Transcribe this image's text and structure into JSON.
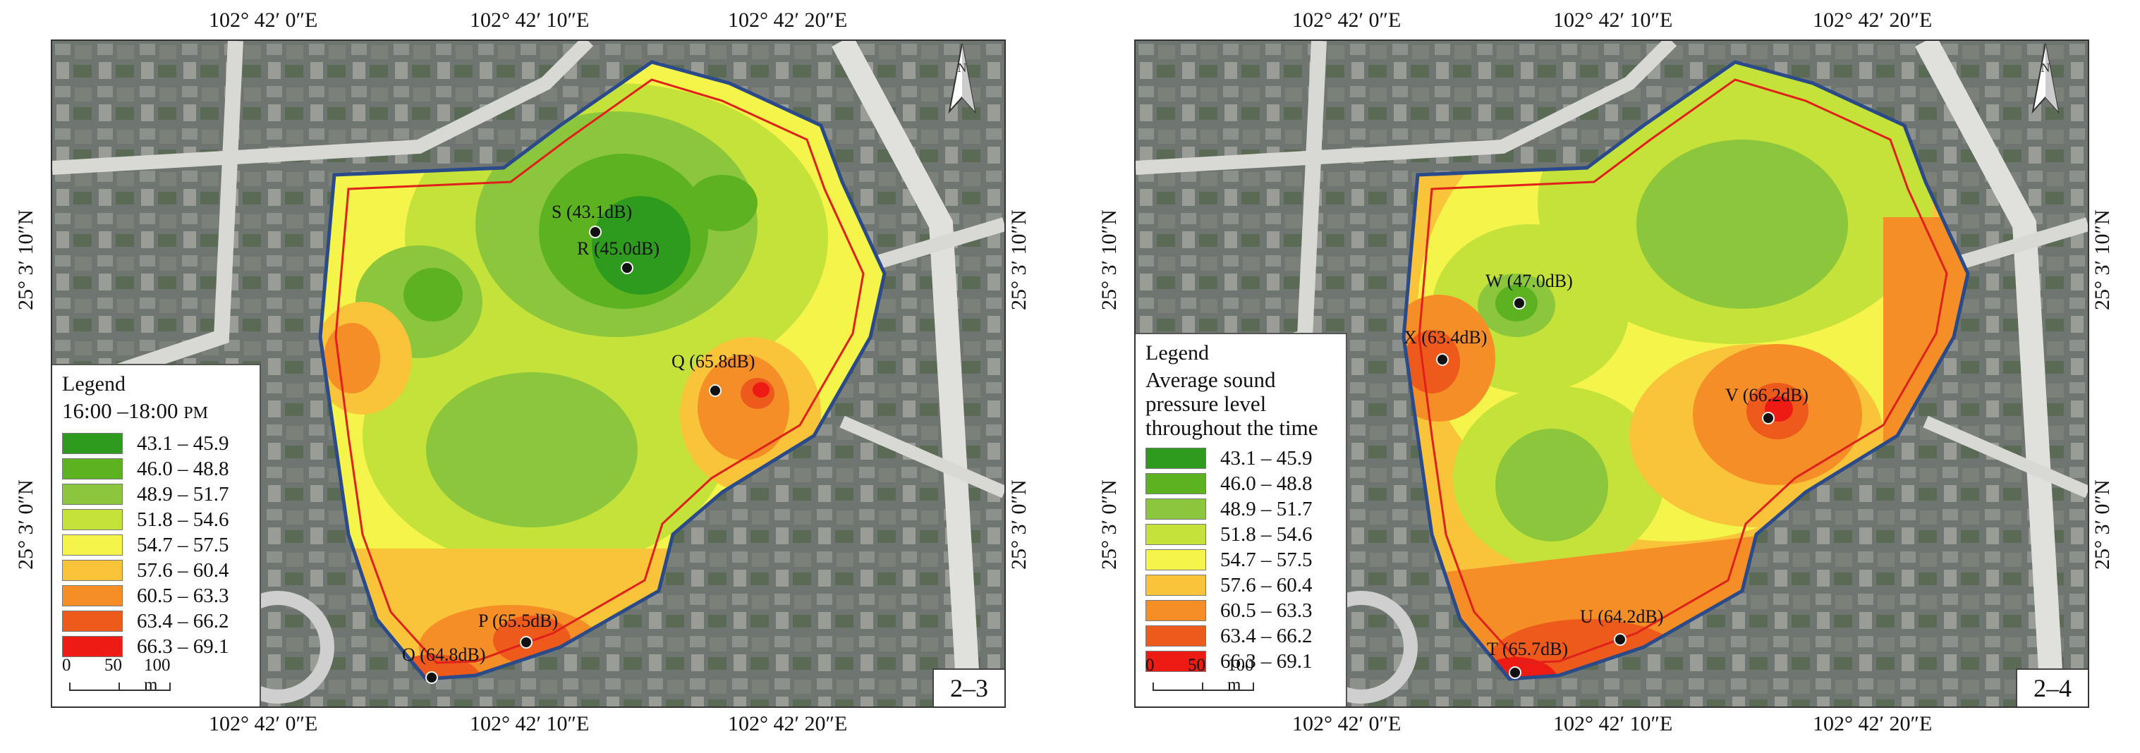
{
  "coordinates": {
    "top": [
      "102° 42′ 0″E",
      "102° 42′ 10″E",
      "102° 42′ 20″E"
    ],
    "bottom": [
      "102° 42′ 0″E",
      "102° 42′ 10″E",
      "102° 42′ 20″E"
    ],
    "left": [
      "25° 3′ 10″N",
      "25° 3′ 0″N"
    ],
    "right": [
      "25° 3′ 10″N",
      "25° 3′ 0″N"
    ]
  },
  "legend_classes": [
    {
      "label": "43.1 – 45.9",
      "color": "#2e9a1e"
    },
    {
      "label": "46.0 – 48.8",
      "color": "#5cb21f"
    },
    {
      "label": "48.9 – 51.7",
      "color": "#8cc63c"
    },
    {
      "label": "51.8 – 54.6",
      "color": "#c4e23a"
    },
    {
      "label": "54.7 – 57.5",
      "color": "#f4f44a"
    },
    {
      "label": "57.6 – 60.4",
      "color": "#f9c43a"
    },
    {
      "label": "60.5 – 63.3",
      "color": "#f58e26"
    },
    {
      "label": "63.4 – 66.2",
      "color": "#ee5a1c"
    },
    {
      "label": "66.3 – 69.1",
      "color": "#ee1a14"
    }
  ],
  "scale_bar": {
    "zero": "0",
    "mid": "50",
    "end": "100 m"
  },
  "panels": [
    {
      "id": "2–3",
      "legend_title": "Legend",
      "legend_subtitle_time": "16:00 –18:00",
      "legend_subtitle_suffix": "PM",
      "points": [
        {
          "label": "S (43.1dB)"
        },
        {
          "label": "R (45.0dB)"
        },
        {
          "label": "Q (65.8dB)"
        },
        {
          "label": "P (65.5dB)"
        },
        {
          "label": "O (64.8dB)"
        }
      ]
    },
    {
      "id": "2–4",
      "legend_title": "Legend",
      "legend_subtitle": "Average sound pressure level throughout the time",
      "points": [
        {
          "label": "W (47.0dB)"
        },
        {
          "label": "X (63.4dB)"
        },
        {
          "label": "V (66.2dB)"
        },
        {
          "label": "U (64.2dB)"
        },
        {
          "label": "T (65.7dB)"
        }
      ]
    }
  ]
}
